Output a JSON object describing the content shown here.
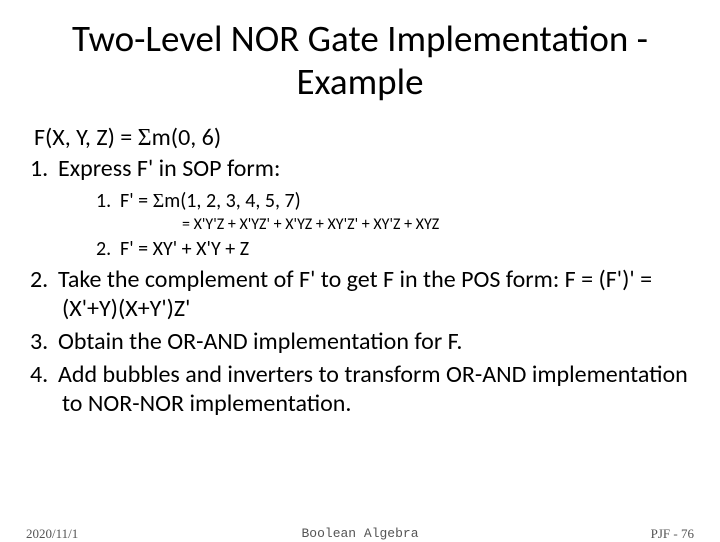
{
  "title": "Two-Level NOR Gate Implementation - Example",
  "funcDef": "F(X, Y, Z) = Σm(0, 6)",
  "steps": [
    {
      "num": "1.",
      "text": "Express F' in SOP form:",
      "sub": [
        {
          "num": "1.",
          "text": "F' = Σm(1, 2, 3, 4, 5, 7)",
          "detail": "= X'Y'Z + X'YZ' + X'YZ + XY'Z' + XY'Z + XYZ"
        },
        {
          "num": "2.",
          "text": "F' = XY' + X'Y + Z"
        }
      ]
    },
    {
      "num": "2.",
      "text": "Take the complement of F' to get F in the POS form: F = (F')' = (X'+Y)(X+Y')Z'"
    },
    {
      "num": "3.",
      "text": "Obtain the OR-AND implementation for F."
    },
    {
      "num": "4.",
      "text": "Add bubbles and inverters to transform OR-AND implementation to NOR-NOR implementation."
    }
  ],
  "footer": {
    "date": "2020/11/1",
    "center": "Boolean Algebra",
    "right": "PJF - 76"
  },
  "colors": {
    "background": "#ffffff",
    "text": "#000000",
    "footer": "#555555"
  },
  "fonts": {
    "title_size": 37,
    "body_size": 24,
    "sub_size": 20,
    "subsub_size": 16,
    "footer_size": 13
  }
}
